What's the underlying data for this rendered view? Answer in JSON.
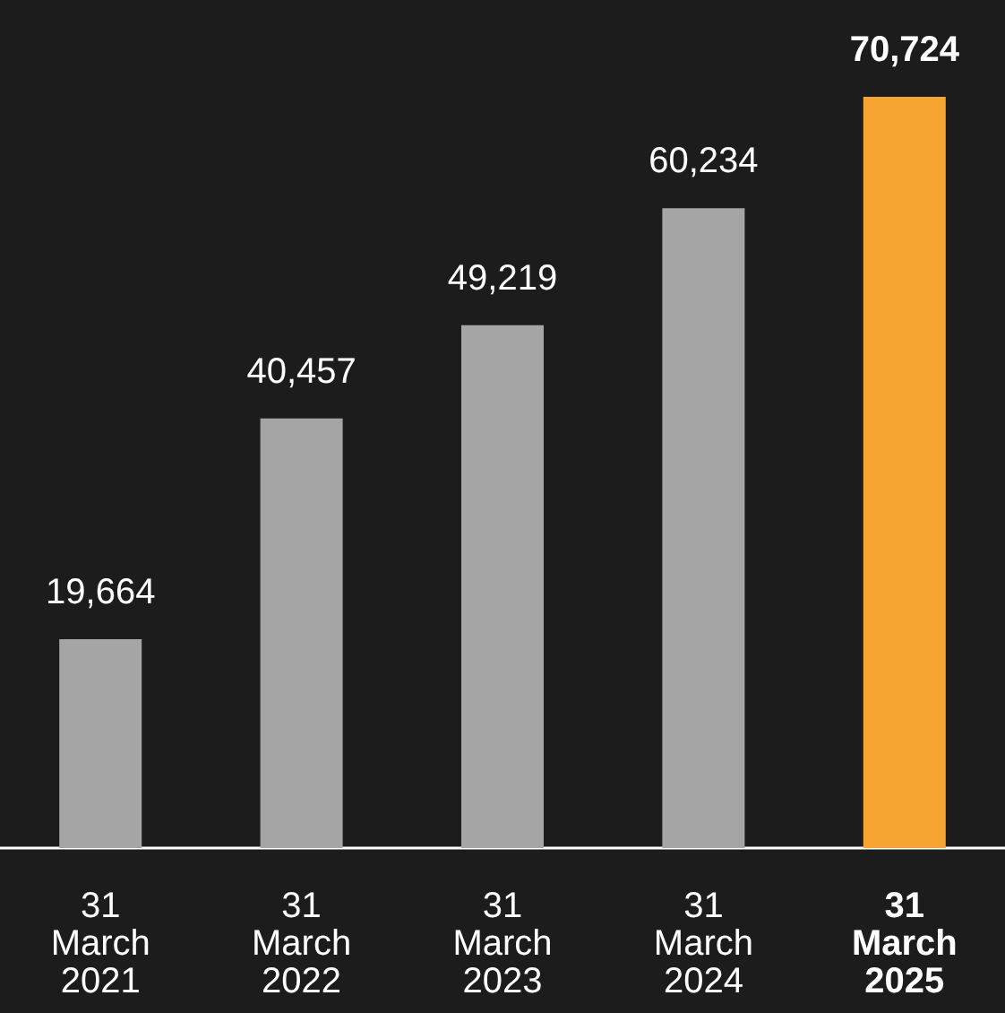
{
  "chart_data": {
    "type": "bar",
    "categories": [
      "31\nMarch\n2021",
      "31\nMarch\n2022",
      "31\nMarch\n2023",
      "31\nMarch\n2024",
      "31\nMarch\n2025"
    ],
    "values": [
      19664,
      40457,
      49219,
      60234,
      70724
    ],
    "value_labels": [
      "19,664",
      "40,457",
      "49,219",
      "60,234",
      "70,724"
    ],
    "colors": [
      "#a5a5a5",
      "#a5a5a5",
      "#a5a5a5",
      "#a5a5a5",
      "#f6a532"
    ]
  }
}
